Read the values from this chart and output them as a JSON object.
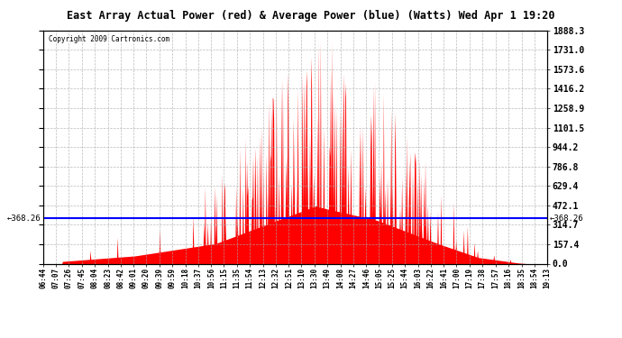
{
  "title": "East Array Actual Power (red) & Average Power (blue) (Watts) Wed Apr 1 19:20",
  "copyright": "Copyright 2009 Cartronics.com",
  "avg_power": 368.26,
  "ymax": 1888.3,
  "yticks": [
    0.0,
    157.4,
    314.7,
    472.1,
    629.4,
    786.8,
    944.2,
    1101.5,
    1258.9,
    1416.2,
    1573.6,
    1731.0,
    1888.3
  ],
  "xtick_labels": [
    "06:44",
    "07:07",
    "07:26",
    "07:45",
    "08:04",
    "08:23",
    "08:42",
    "09:01",
    "09:20",
    "09:39",
    "09:59",
    "10:18",
    "10:37",
    "10:56",
    "11:15",
    "11:35",
    "11:54",
    "12:13",
    "12:32",
    "12:51",
    "13:10",
    "13:30",
    "13:49",
    "14:08",
    "14:27",
    "14:46",
    "15:05",
    "15:25",
    "15:44",
    "16:03",
    "16:22",
    "16:41",
    "17:00",
    "17:19",
    "17:38",
    "17:57",
    "18:16",
    "18:35",
    "18:54",
    "19:13"
  ],
  "background_color": "#ffffff",
  "plot_bg_color": "#ffffff",
  "grid_color": "#aaaaaa",
  "line_color_red": "#ff0000",
  "line_color_blue": "#0000ff",
  "avg_label_left": "←368.26",
  "avg_label_right": "←368.26",
  "figwidth": 6.9,
  "figheight": 3.75,
  "dpi": 100
}
